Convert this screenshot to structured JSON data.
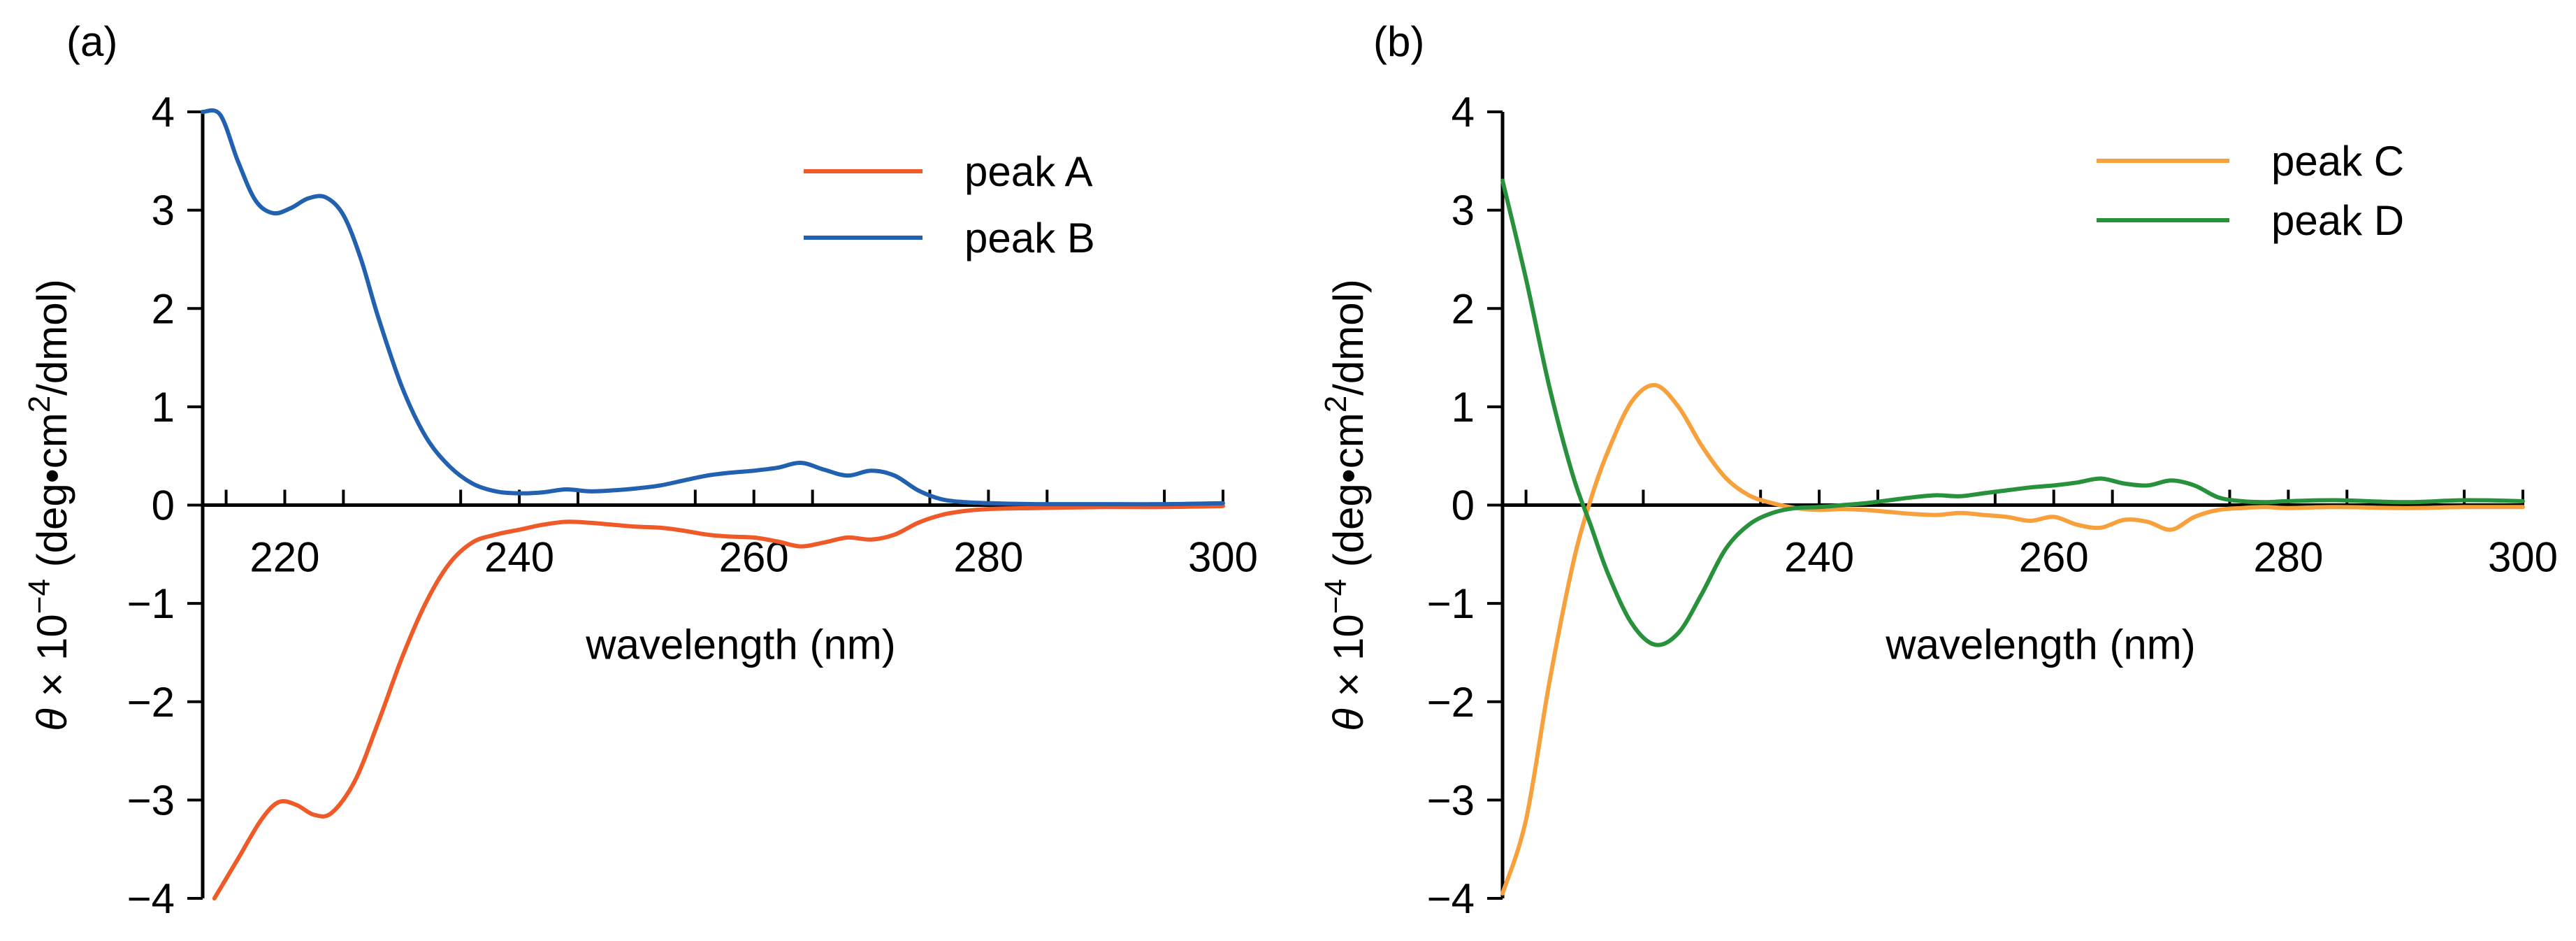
{
  "chart_data": [
    {
      "panel": "(a)",
      "type": "line",
      "xlabel": "wavelength (nm)",
      "ylabel_parts": [
        "θ",
        " × 10",
        "−4",
        " (deg•cm",
        "2",
        "/dmol)"
      ],
      "xlim": [
        213,
        300
      ],
      "ylim": [
        -4,
        4
      ],
      "xticks": [
        220,
        240,
        260,
        280,
        300
      ],
      "yticks": [
        -4,
        -3,
        -2,
        -1,
        0,
        1,
        2,
        3,
        4
      ],
      "ytick_labels": [
        "−4",
        "−3",
        "−2",
        "−1",
        "0",
        "1",
        "2",
        "3",
        "4"
      ],
      "legend_position": "top-right",
      "series": [
        {
          "name": "peak A",
          "color": "#f05a28",
          "x": [
            214,
            216,
            218,
            219.5,
            221,
            222.5,
            224,
            226,
            228,
            230,
            232,
            234,
            236,
            238,
            240,
            242,
            244,
            246,
            248,
            250,
            252,
            254,
            256,
            258,
            260,
            262,
            264,
            266,
            268,
            270,
            272,
            274,
            276,
            278,
            280,
            284,
            290,
            295,
            300
          ],
          "y": [
            -4.0,
            -3.6,
            -3.2,
            -3.02,
            -3.05,
            -3.15,
            -3.13,
            -2.8,
            -2.2,
            -1.55,
            -1.0,
            -0.6,
            -0.38,
            -0.3,
            -0.25,
            -0.2,
            -0.17,
            -0.18,
            -0.2,
            -0.22,
            -0.23,
            -0.26,
            -0.3,
            -0.32,
            -0.33,
            -0.37,
            -0.42,
            -0.38,
            -0.33,
            -0.35,
            -0.3,
            -0.18,
            -0.1,
            -0.06,
            -0.04,
            -0.03,
            -0.02,
            -0.02,
            -0.01
          ]
        },
        {
          "name": "peak B",
          "color": "#2161b0",
          "x": [
            213,
            214.5,
            216,
            217.5,
            219,
            220.5,
            222,
            223.5,
            225,
            226.5,
            228,
            230,
            232,
            234,
            236,
            238,
            240,
            242,
            244,
            246,
            248,
            250,
            252,
            254,
            256,
            258,
            260,
            262,
            264,
            266,
            268,
            270,
            272,
            274,
            276,
            278,
            280,
            284,
            290,
            295,
            300
          ],
          "y": [
            4.0,
            3.97,
            3.5,
            3.1,
            2.97,
            3.02,
            3.12,
            3.13,
            2.95,
            2.5,
            1.9,
            1.2,
            0.7,
            0.4,
            0.22,
            0.14,
            0.12,
            0.13,
            0.16,
            0.14,
            0.15,
            0.17,
            0.2,
            0.25,
            0.3,
            0.33,
            0.35,
            0.38,
            0.43,
            0.36,
            0.3,
            0.35,
            0.3,
            0.15,
            0.06,
            0.03,
            0.02,
            0.01,
            0.01,
            0.01,
            0.02
          ]
        }
      ]
    },
    {
      "panel": "(b)",
      "type": "line",
      "xlabel": "wavelength (nm)",
      "ylabel_parts": [
        "θ",
        " × 10",
        "−4",
        " (deg•cm",
        "2",
        "/dmol)"
      ],
      "xlim": [
        213,
        300
      ],
      "ylim": [
        -4,
        4
      ],
      "xticks": [
        240,
        260,
        280,
        300
      ],
      "yticks": [
        -4,
        -3,
        -2,
        -1,
        0,
        1,
        2,
        3,
        4
      ],
      "ytick_labels": [
        "−4",
        "−3",
        "−2",
        "−1",
        "0",
        "1",
        "2",
        "3",
        "4"
      ],
      "legend_position": "top-right",
      "series": [
        {
          "name": "peak C",
          "color": "#f7a03c",
          "x": [
            213,
            215,
            217,
            219,
            220.5,
            222,
            224,
            226,
            228,
            230,
            232,
            234,
            236,
            238,
            240,
            242,
            244,
            246,
            248,
            250,
            252,
            254,
            256,
            258,
            260,
            262,
            264,
            266,
            268,
            270,
            272,
            274,
            276,
            278,
            280,
            284,
            290,
            295,
            300
          ],
          "y": [
            -3.95,
            -3.2,
            -1.8,
            -0.6,
            0.05,
            0.55,
            1.05,
            1.22,
            1.0,
            0.6,
            0.28,
            0.1,
            0.02,
            -0.03,
            -0.05,
            -0.04,
            -0.05,
            -0.07,
            -0.09,
            -0.1,
            -0.08,
            -0.1,
            -0.12,
            -0.16,
            -0.12,
            -0.2,
            -0.23,
            -0.15,
            -0.17,
            -0.25,
            -0.12,
            -0.05,
            -0.03,
            -0.02,
            -0.03,
            -0.02,
            -0.03,
            -0.02,
            -0.02
          ]
        },
        {
          "name": "peak D",
          "color": "#27913c",
          "x": [
            213,
            215,
            217,
            219,
            220.5,
            222,
            224,
            226,
            228,
            230,
            232,
            234,
            236,
            238,
            240,
            242,
            244,
            246,
            248,
            250,
            252,
            254,
            256,
            258,
            260,
            262,
            264,
            266,
            268,
            270,
            272,
            274,
            276,
            278,
            280,
            284,
            290,
            295,
            300
          ],
          "y": [
            3.3,
            2.3,
            1.2,
            0.3,
            -0.2,
            -0.7,
            -1.2,
            -1.42,
            -1.3,
            -0.9,
            -0.45,
            -0.2,
            -0.08,
            -0.03,
            -0.02,
            0.0,
            0.02,
            0.05,
            0.08,
            0.1,
            0.09,
            0.12,
            0.15,
            0.18,
            0.2,
            0.23,
            0.27,
            0.22,
            0.2,
            0.25,
            0.2,
            0.08,
            0.04,
            0.03,
            0.04,
            0.05,
            0.03,
            0.05,
            0.04
          ]
        }
      ]
    }
  ]
}
